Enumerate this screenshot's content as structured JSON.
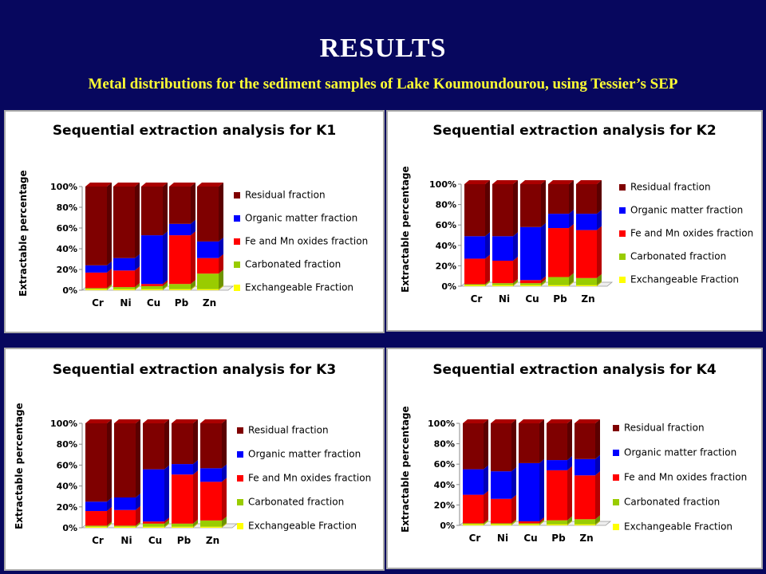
{
  "slide": {
    "title": "RESULTS",
    "subtitle": "Metal distributions for the sediment samples of Lake Koumoundourou, using Tessier’s SEP"
  },
  "colors": {
    "background": "#07075e",
    "residual": "#7f0000",
    "organic": "#0000ff",
    "oxides": "#ff0000",
    "carbonated": "#99cc00",
    "exchangeable": "#ffff00"
  },
  "chart_data": [
    {
      "type": "bar",
      "stacked": true,
      "title": "Sequential extraction analysis for K1",
      "ylabel": "Extractable percentage",
      "yticks": [
        "0%",
        "20%",
        "40%",
        "60%",
        "80%",
        "100%"
      ],
      "ylim": [
        0,
        100
      ],
      "categories": [
        "Cr",
        "Ni",
        "Cu",
        "Pb",
        "Zn"
      ],
      "series": [
        {
          "name": "Exchangeable Fraction",
          "values": [
            1,
            1,
            1,
            1,
            1
          ]
        },
        {
          "name": "Carbonated fraction",
          "values": [
            1,
            2,
            3,
            5,
            15
          ]
        },
        {
          "name": "Fe and Mn oxides fraction",
          "values": [
            15,
            16,
            2,
            47,
            15
          ]
        },
        {
          "name": "Organic matter fraction",
          "values": [
            7,
            12,
            47,
            11,
            16
          ]
        },
        {
          "name": "Residual fraction",
          "values": [
            76,
            69,
            47,
            36,
            53
          ]
        }
      ],
      "legend_order": [
        "Residual fraction",
        "Organic matter fraction",
        "Fe and Mn oxides fraction",
        "Carbonated fraction",
        "Exchangeable Fraction"
      ],
      "legend": "right",
      "grid": false
    },
    {
      "type": "bar",
      "stacked": true,
      "title": "Sequential extraction analysis for K2",
      "ylabel": "Extractable percentage",
      "yticks": [
        "0%",
        "20%",
        "40%",
        "60%",
        "80%",
        "100%"
      ],
      "ylim": [
        0,
        100
      ],
      "categories": [
        "Cr",
        "Ni",
        "Cu",
        "Pb",
        "Zn"
      ],
      "series": [
        {
          "name": "Exchangeable Fraction",
          "values": [
            1,
            1,
            1,
            1,
            1
          ]
        },
        {
          "name": "Carbonated fraction",
          "values": [
            1,
            2,
            2,
            8,
            7
          ]
        },
        {
          "name": "Fe and Mn oxides fraction",
          "values": [
            25,
            22,
            3,
            48,
            47
          ]
        },
        {
          "name": "Organic matter fraction",
          "values": [
            22,
            24,
            52,
            14,
            16
          ]
        },
        {
          "name": "Residual fraction",
          "values": [
            51,
            51,
            42,
            29,
            29
          ]
        }
      ],
      "legend_order": [
        "Residual fraction",
        "Organic matter fraction",
        "Fe and Mn oxides fraction",
        "Carbonated fraction",
        "Exchangeable Fraction"
      ],
      "legend": "right",
      "grid": false
    },
    {
      "type": "bar",
      "stacked": true,
      "title": "Sequential extraction analysis for K3",
      "ylabel": "Extractable percentage",
      "yticks": [
        "0%",
        "20%",
        "40%",
        "60%",
        "80%",
        "100%"
      ],
      "ylim": [
        0,
        100
      ],
      "categories": [
        "Cr",
        "Ni",
        "Cu",
        "Pb",
        "Zn"
      ],
      "series": [
        {
          "name": "Exchangeable Fraction",
          "values": [
            1,
            1,
            1,
            1,
            1
          ]
        },
        {
          "name": "Carbonated fraction",
          "values": [
            1,
            1,
            3,
            3,
            6
          ]
        },
        {
          "name": "Fe and Mn oxides fraction",
          "values": [
            14,
            15,
            2,
            47,
            37
          ]
        },
        {
          "name": "Organic matter fraction",
          "values": [
            9,
            12,
            50,
            10,
            13
          ]
        },
        {
          "name": "Residual fraction",
          "values": [
            75,
            71,
            44,
            39,
            43
          ]
        }
      ],
      "legend_order": [
        "Residual fraction",
        "Organic matter fraction",
        "Fe and Mn oxides fraction",
        "Carbonated fraction",
        "Exchangeable Fraction"
      ],
      "legend": "right",
      "grid": false
    },
    {
      "type": "bar",
      "stacked": true,
      "title": "Sequential extraction analysis for K4",
      "ylabel": "Extractable percentage",
      "yticks": [
        "0%",
        "20%",
        "40%",
        "60%",
        "80%",
        "100%"
      ],
      "ylim": [
        0,
        100
      ],
      "categories": [
        "Cr",
        "Ni",
        "Cu",
        "Pb",
        "Zn"
      ],
      "series": [
        {
          "name": "Exchangeable Fraction",
          "values": [
            1,
            1,
            1,
            1,
            1
          ]
        },
        {
          "name": "Carbonated fraction",
          "values": [
            1,
            1,
            1,
            4,
            5
          ]
        },
        {
          "name": "Fe and Mn oxides fraction",
          "values": [
            28,
            24,
            2,
            49,
            43
          ]
        },
        {
          "name": "Organic matter fraction",
          "values": [
            25,
            27,
            57,
            10,
            16
          ]
        },
        {
          "name": "Residual fraction",
          "values": [
            45,
            47,
            39,
            36,
            35
          ]
        }
      ],
      "legend_order": [
        "Residual fraction",
        "Organic matter fraction",
        "Fe and Mn oxides fraction",
        "Carbonated fraction",
        "Exchangeable Fraction"
      ],
      "legend": "right",
      "grid": false
    }
  ]
}
